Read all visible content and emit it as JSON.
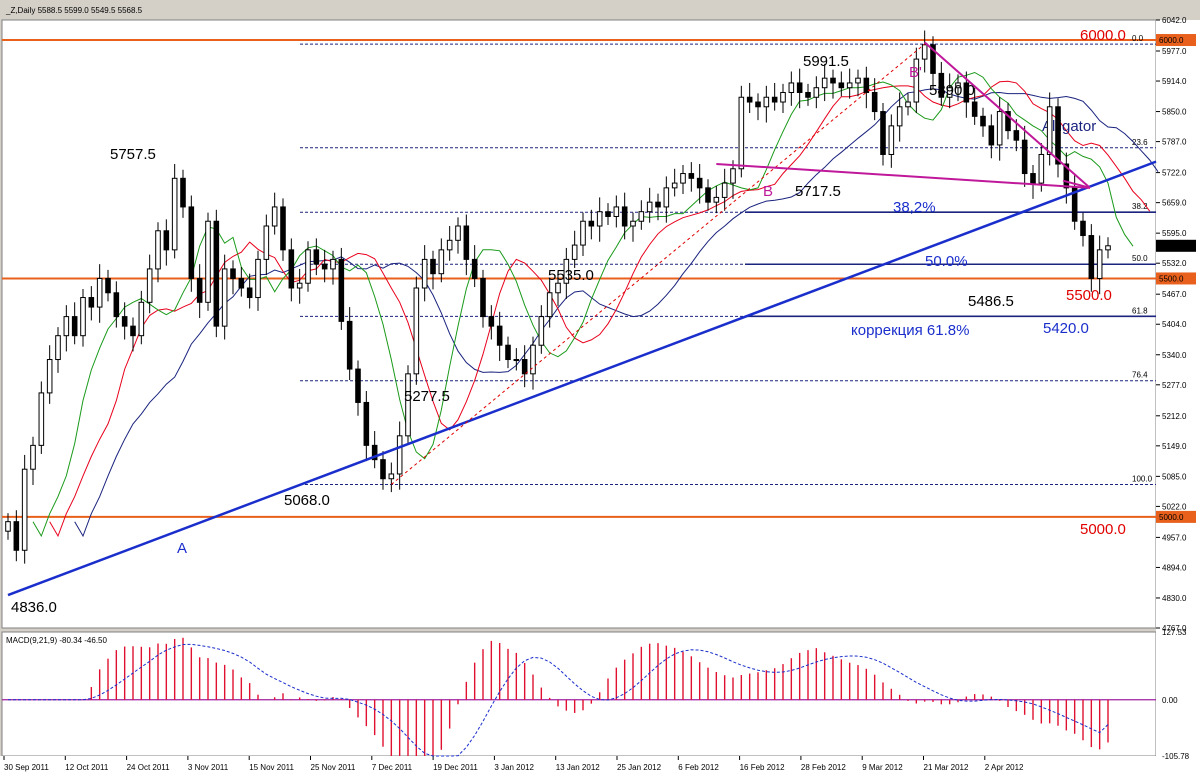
{
  "window": {
    "header": "_Z,Daily  5588.5 5599.0 5549.5 5568.5",
    "macd_header": "MACD(9,21,9) -80.34 -46.50"
  },
  "colors": {
    "background": "#ffffff",
    "bull_candle": "#ffffff",
    "bear_candle": "#000000",
    "level_line": "#e8601c",
    "level_text": "#e00000",
    "trend_line": "#1a2ecc",
    "triangle": "#c0189a",
    "fib_line": "#1a237e",
    "alligator_jaw": "#1a237e",
    "alligator_teeth": "#e8001c",
    "alligator_lips": "#1a9a1a",
    "macd_hist": "#e01030",
    "macd_signal": "#1a2ecc"
  },
  "chart_data": {
    "type": "candlestick",
    "instrument": "_Z",
    "timeframe": "Daily",
    "ylim": [
      4767.0,
      6042.0
    ],
    "y_ticks": [
      "6042.0",
      "5977.0",
      "5914.0",
      "5850.0",
      "5787.0",
      "5722.0",
      "5659.0",
      "5595.0",
      "5532.0",
      "5467.0",
      "5404.0",
      "5340.0",
      "5277.0",
      "5212.0",
      "5149.0",
      "5085.0",
      "5022.0",
      "4957.0",
      "4894.0",
      "4830.0",
      "4767.0"
    ],
    "x_ticks": [
      "30 Sep 2011",
      "12 Oct 2011",
      "24 Oct 2011",
      "3 Nov 2011",
      "15 Nov 2011",
      "25 Nov 2011",
      "7 Dec 2011",
      "19 Dec 2011",
      "3 Jan 2012",
      "13 Jan 2012",
      "25 Jan 2012",
      "6 Feb 2012",
      "16 Feb 2012",
      "28 Feb 2012",
      "9 Mar 2012",
      "21 Mar 2012",
      "2 Apr 2012"
    ],
    "price_labels": {
      "current": "5568.5",
      "level_high": "6000.0",
      "level_mid": "5500.0",
      "level_low": "5000.0"
    },
    "closes": [
      4990,
      4930,
      5100,
      5150,
      5260,
      5330,
      5380,
      5420,
      5380,
      5460,
      5440,
      5500,
      5470,
      5420,
      5400,
      5380,
      5450,
      5520,
      5600,
      5560,
      5710,
      5650,
      5500,
      5450,
      5620,
      5400,
      5520,
      5500,
      5480,
      5460,
      5540,
      5610,
      5650,
      5560,
      5480,
      5490,
      5560,
      5530,
      5520,
      5540,
      5410,
      5310,
      5240,
      5150,
      5120,
      5080,
      5090,
      5170,
      5300,
      5480,
      5540,
      5510,
      5560,
      5580,
      5610,
      5540,
      5500,
      5420,
      5400,
      5360,
      5330,
      5330,
      5300,
      5360,
      5420,
      5470,
      5490,
      5540,
      5570,
      5620,
      5610,
      5640,
      5630,
      5650,
      5610,
      5620,
      5640,
      5660,
      5650,
      5690,
      5700,
      5720,
      5710,
      5690,
      5660,
      5670,
      5700,
      5730,
      5880,
      5870,
      5860,
      5880,
      5870,
      5890,
      5910,
      5890,
      5880,
      5900,
      5920,
      5910,
      5900,
      5910,
      5920,
      5890,
      5850,
      5760,
      5820,
      5860,
      5870,
      5960,
      5990,
      5930,
      5880,
      5900,
      5910,
      5870,
      5840,
      5820,
      5780,
      5850,
      5810,
      5790,
      5720,
      5700,
      5760,
      5860,
      5740,
      5690,
      5620,
      5590,
      5500,
      5560,
      5568.5
    ],
    "annotations": {
      "price_points": [
        "5991.5",
        "5890.0",
        "5757.5",
        "5717.5",
        "5535.0",
        "5486.5",
        "5277.5",
        "5068.0",
        "4836.0",
        "5420.0"
      ],
      "pattern_labels": [
        "B'",
        "B",
        "A",
        "Alligator"
      ],
      "fib_labels": [
        "0.0",
        "23.6",
        "38.2",
        "50.0",
        "61.8",
        "76.4",
        "100.0"
      ],
      "fib_pct_labels": [
        "38,2%",
        "50.0%"
      ],
      "correction_label": "коррекция 61.8%"
    },
    "macd": {
      "params": "9,21,9",
      "value": -80.34,
      "signal": -46.5,
      "ylim": [
        -105.78,
        127.53
      ],
      "y_ticks": [
        "127.53",
        "0.00",
        "-105.78"
      ]
    },
    "grid": true
  }
}
